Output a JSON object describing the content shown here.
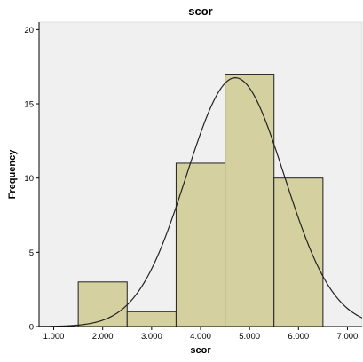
{
  "chart_data": {
    "type": "bar",
    "title": "scor",
    "xlabel": "scor",
    "ylabel": "Frequency",
    "xlim": [
      0.7,
      7.3
    ],
    "ylim": [
      0,
      20.5
    ],
    "x_ticks": [
      1.0,
      2.0,
      3.0,
      4.0,
      5.0,
      6.0,
      7.0
    ],
    "x_tick_labels": [
      "1.000",
      "2.000",
      "3.000",
      "4.000",
      "5.000",
      "6.000",
      "7.000"
    ],
    "y_ticks": [
      0,
      5,
      10,
      15,
      20
    ],
    "y_tick_labels": [
      "0",
      "5",
      "10",
      "15",
      "20"
    ],
    "bins": [
      {
        "start": 1.5,
        "end": 2.5,
        "value": 3
      },
      {
        "start": 2.5,
        "end": 3.5,
        "value": 1
      },
      {
        "start": 3.5,
        "end": 4.5,
        "value": 11
      },
      {
        "start": 4.5,
        "end": 5.5,
        "value": 17
      },
      {
        "start": 5.5,
        "end": 6.5,
        "value": 10
      }
    ],
    "normal_curve": {
      "mean": 4.71,
      "std_dev": 1.0,
      "n": 42,
      "bin_width": 1.0
    },
    "grid": false,
    "legend": "none",
    "colors": {
      "plot_background": "#f0f0f0",
      "bar_fill": "#d4d09f",
      "bar_stroke": "#222222",
      "curve": "#222222",
      "axis": "#000000"
    }
  }
}
